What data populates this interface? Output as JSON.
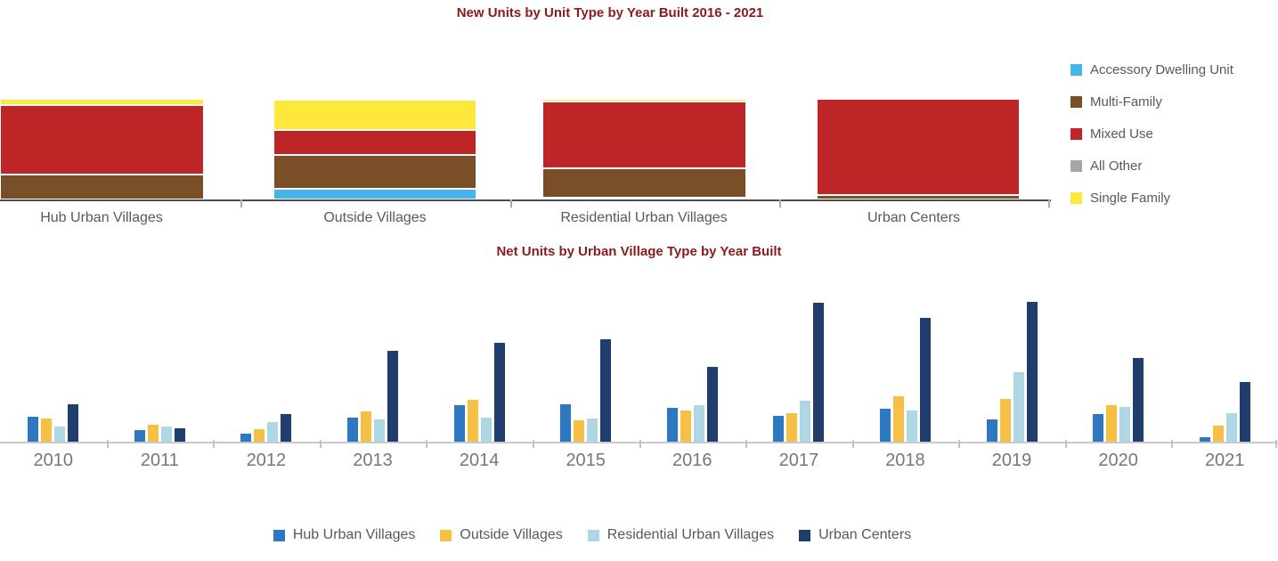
{
  "accent_title_color": "#8B1B1B",
  "chart_data": [
    {
      "type": "bar",
      "variant": "stacked-100-percent",
      "title": "New Units by Unit Type by Year Built 2016 - 2021",
      "xlabel": "",
      "ylabel": "",
      "y_axis_labels_shown": false,
      "grid": false,
      "legend_position": "right",
      "categories": [
        "Hub Urban Villages",
        "Outside Villages",
        "Residential Urban Villages",
        "Urban Centers"
      ],
      "stack_order_bottom_to_top": [
        "Accessory Dwelling Unit",
        "All Other",
        "Multi-Family",
        "Mixed Use",
        "Single Family"
      ],
      "series": [
        {
          "name": "Accessory Dwelling Unit",
          "color": "#45B6E9",
          "values_pct": [
            0,
            11,
            0,
            0
          ]
        },
        {
          "name": "Multi-Family",
          "color": "#7A4E26",
          "values_pct": [
            25,
            34,
            29,
            4
          ]
        },
        {
          "name": "Mixed Use",
          "color": "#BD2526",
          "values_pct": [
            69,
            25,
            66,
            96
          ]
        },
        {
          "name": "All Other",
          "color": "#A6A6A6",
          "values_pct": [
            0,
            0,
            2,
            0
          ]
        },
        {
          "name": "Single Family",
          "color": "#FFE83C",
          "values_pct": [
            6,
            30,
            3,
            0
          ]
        }
      ]
    },
    {
      "type": "bar",
      "variant": "grouped",
      "title": "Net Units by Urban Village Type by Year Built",
      "xlabel": "",
      "ylabel": "",
      "y_axis_labels_shown": false,
      "values_note": "relative heights, no y-axis scale shown",
      "ylim_relative": [
        0,
        170
      ],
      "grid": false,
      "legend_position": "bottom",
      "categories": [
        "2010",
        "2011",
        "2012",
        "2013",
        "2014",
        "2015",
        "2016",
        "2017",
        "2018",
        "2019",
        "2020",
        "2021"
      ],
      "series": [
        {
          "name": "Hub Urban Villages",
          "color": "#2E78C2",
          "values_rel": [
            28,
            13,
            9,
            27,
            41,
            42,
            38,
            29,
            37,
            25,
            31,
            5
          ]
        },
        {
          "name": "Outside Villages",
          "color": "#F6C044",
          "values_rel": [
            26,
            19,
            14,
            34,
            47,
            24,
            35,
            32,
            51,
            48,
            41,
            18
          ]
        },
        {
          "name": "Residential Urban Villages",
          "color": "#AFD6E3",
          "values_rel": [
            17,
            17,
            22,
            25,
            27,
            26,
            41,
            46,
            35,
            78,
            39,
            32
          ]
        },
        {
          "name": "Urban Centers",
          "color": "#1F3E6D",
          "values_rel": [
            42,
            15,
            31,
            102,
            111,
            115,
            84,
            156,
            139,
            157,
            94,
            67
          ]
        }
      ]
    }
  ]
}
